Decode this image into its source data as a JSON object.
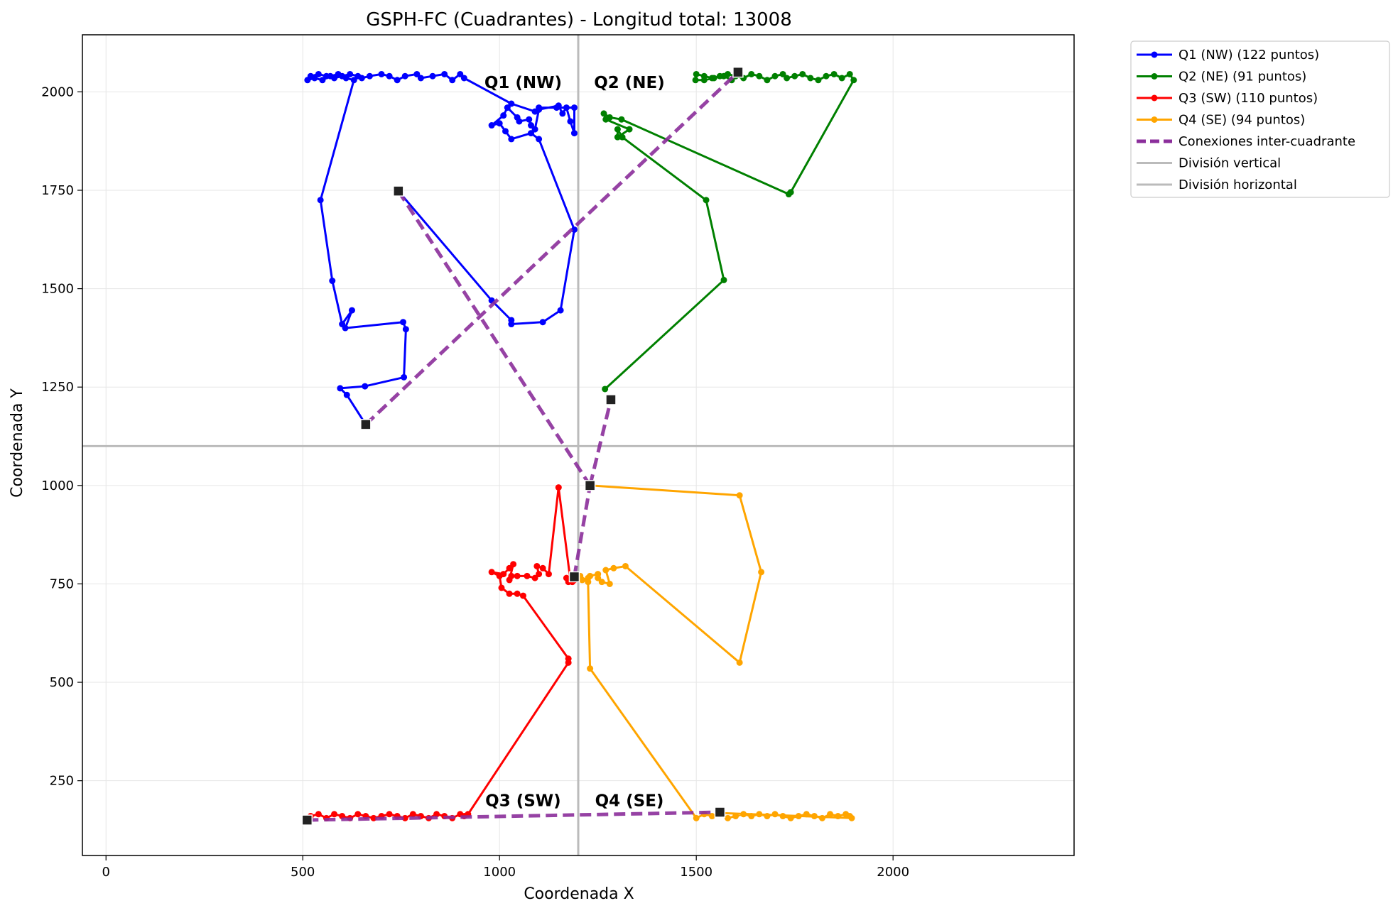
{
  "chart_data": {
    "type": "line",
    "title": "GSPH-FC (Cuadrantes) - Longitud total: 13008",
    "xlabel": "Coordenada X",
    "ylabel": "Coordenada Y",
    "xlim": [
      -60,
      2460
    ],
    "ylim": [
      60,
      2145
    ],
    "xticks": [
      0,
      500,
      1000,
      1500,
      2000
    ],
    "yticks": [
      250,
      500,
      750,
      1000,
      1250,
      1500,
      1750,
      2000
    ],
    "grid": true,
    "legend_position": "outside-top-right",
    "divisions": {
      "vertical_x": 1200,
      "horizontal_y": 1100
    },
    "quadrant_labels": [
      {
        "text": "Q1 (NW)",
        "x": 1060,
        "y": 2010
      },
      {
        "text": "Q2 (NE)",
        "x": 1330,
        "y": 2010
      },
      {
        "text": "Q3 (SW)",
        "x": 1060,
        "y": 185
      },
      {
        "text": "Q4 (SE)",
        "x": 1330,
        "y": 185
      }
    ],
    "legend": [
      {
        "label": "Q1 (NW) (122 puntos)",
        "color": "#0000ff",
        "style": "line-marker"
      },
      {
        "label": "Q2 (NE) (91 puntos)",
        "color": "#008000",
        "style": "line-marker"
      },
      {
        "label": "Q3 (SW) (110 puntos)",
        "color": "#ff0000",
        "style": "line-marker"
      },
      {
        "label": "Q4 (SE) (94 puntos)",
        "color": "#ffa500",
        "style": "line-marker"
      },
      {
        "label": "Conexiones inter-cuadrante",
        "color": "#8b2e9b",
        "style": "dashed"
      },
      {
        "label": "División vertical",
        "color": "#bbbbbb",
        "style": "line"
      },
      {
        "label": "División horizontal",
        "color": "#bbbbbb",
        "style": "line"
      }
    ],
    "series": [
      {
        "name": "Q1 (NW)",
        "color": "#0000ff",
        "points": [
          [
            743,
            1748
          ],
          [
            980,
            1470
          ],
          [
            1030,
            1420
          ],
          [
            1030,
            1410
          ],
          [
            1110,
            1415
          ],
          [
            1155,
            1445
          ],
          [
            1190,
            1650
          ],
          [
            1100,
            1880
          ],
          [
            1080,
            1895
          ],
          [
            1030,
            1880
          ],
          [
            1015,
            1900
          ],
          [
            1000,
            1920
          ],
          [
            980,
            1915
          ],
          [
            1010,
            1940
          ],
          [
            1020,
            1960
          ],
          [
            1045,
            1935
          ],
          [
            1050,
            1925
          ],
          [
            1075,
            1930
          ],
          [
            1080,
            1915
          ],
          [
            1090,
            1905
          ],
          [
            1100,
            1955
          ],
          [
            1150,
            1965
          ],
          [
            1160,
            1945
          ],
          [
            1170,
            1960
          ],
          [
            1180,
            1925
          ],
          [
            1190,
            1895
          ],
          [
            1190,
            1960
          ],
          [
            1145,
            1960
          ],
          [
            1100,
            1960
          ],
          [
            1090,
            1950
          ],
          [
            1030,
            1970
          ],
          [
            910,
            2035
          ],
          [
            900,
            2045
          ],
          [
            880,
            2030
          ],
          [
            860,
            2045
          ],
          [
            830,
            2040
          ],
          [
            800,
            2035
          ],
          [
            790,
            2045
          ],
          [
            760,
            2040
          ],
          [
            740,
            2030
          ],
          [
            720,
            2040
          ],
          [
            700,
            2045
          ],
          [
            670,
            2040
          ],
          [
            650,
            2035
          ],
          [
            640,
            2040
          ],
          [
            620,
            2045
          ],
          [
            600,
            2040
          ],
          [
            580,
            2035
          ],
          [
            560,
            2040
          ],
          [
            540,
            2045
          ],
          [
            520,
            2040
          ],
          [
            512,
            2030
          ],
          [
            530,
            2035
          ],
          [
            550,
            2030
          ],
          [
            570,
            2040
          ],
          [
            590,
            2045
          ],
          [
            610,
            2035
          ],
          [
            630,
            2030
          ],
          [
            545,
            1725
          ],
          [
            575,
            1520
          ],
          [
            600,
            1410
          ],
          [
            625,
            1445
          ],
          [
            608,
            1400
          ],
          [
            755,
            1415
          ],
          [
            762,
            1397
          ],
          [
            757,
            1275
          ],
          [
            658,
            1252
          ],
          [
            595,
            1247
          ],
          [
            612,
            1230
          ],
          [
            660,
            1155
          ]
        ]
      },
      {
        "name": "Q2 (NE)",
        "color": "#008000",
        "points": [
          [
            1268,
            1245
          ],
          [
            1570,
            1522
          ],
          [
            1525,
            1725
          ],
          [
            1312,
            1885
          ],
          [
            1300,
            1905
          ],
          [
            1300,
            1885
          ],
          [
            1330,
            1905
          ],
          [
            1270,
            1930
          ],
          [
            1265,
            1945
          ],
          [
            1280,
            1935
          ],
          [
            1310,
            1930
          ],
          [
            1735,
            1740
          ],
          [
            1740,
            1745
          ],
          [
            1900,
            2030
          ],
          [
            1890,
            2045
          ],
          [
            1870,
            2035
          ],
          [
            1850,
            2045
          ],
          [
            1830,
            2040
          ],
          [
            1810,
            2030
          ],
          [
            1790,
            2035
          ],
          [
            1770,
            2045
          ],
          [
            1750,
            2040
          ],
          [
            1730,
            2035
          ],
          [
            1720,
            2045
          ],
          [
            1700,
            2040
          ],
          [
            1680,
            2030
          ],
          [
            1660,
            2040
          ],
          [
            1640,
            2045
          ],
          [
            1620,
            2035
          ],
          [
            1600,
            2040
          ],
          [
            1580,
            2045
          ],
          [
            1560,
            2040
          ],
          [
            1540,
            2035
          ],
          [
            1520,
            2040
          ],
          [
            1500,
            2045
          ],
          [
            1498,
            2030
          ],
          [
            1520,
            2030
          ],
          [
            1545,
            2035
          ],
          [
            1570,
            2040
          ],
          [
            1590,
            2030
          ],
          [
            1606,
            2050
          ]
        ]
      },
      {
        "name": "Q3 (SW)",
        "color": "#ff0000",
        "points": [
          [
            511,
            150
          ],
          [
            520,
            160
          ],
          [
            540,
            165
          ],
          [
            560,
            155
          ],
          [
            580,
            165
          ],
          [
            600,
            160
          ],
          [
            620,
            155
          ],
          [
            640,
            165
          ],
          [
            660,
            160
          ],
          [
            680,
            155
          ],
          [
            700,
            160
          ],
          [
            720,
            165
          ],
          [
            740,
            160
          ],
          [
            760,
            155
          ],
          [
            780,
            165
          ],
          [
            800,
            160
          ],
          [
            820,
            155
          ],
          [
            840,
            165
          ],
          [
            860,
            160
          ],
          [
            880,
            155
          ],
          [
            900,
            165
          ],
          [
            910,
            160
          ],
          [
            920,
            165
          ],
          [
            1175,
            550
          ],
          [
            1175,
            560
          ],
          [
            1060,
            720
          ],
          [
            1045,
            725
          ],
          [
            1025,
            725
          ],
          [
            1005,
            740
          ],
          [
            1000,
            770
          ],
          [
            980,
            780
          ],
          [
            1010,
            775
          ],
          [
            1025,
            790
          ],
          [
            1035,
            800
          ],
          [
            1025,
            760
          ],
          [
            1030,
            770
          ],
          [
            1045,
            770
          ],
          [
            1070,
            770
          ],
          [
            1090,
            765
          ],
          [
            1100,
            775
          ],
          [
            1095,
            795
          ],
          [
            1110,
            790
          ],
          [
            1125,
            775
          ],
          [
            1150,
            995
          ],
          [
            1180,
            760
          ],
          [
            1175,
            755
          ],
          [
            1170,
            765
          ],
          [
            1185,
            755
          ],
          [
            1190,
            760
          ],
          [
            1200,
            770
          ]
        ]
      },
      {
        "name": "Q4 (SE)",
        "color": "#ffa500",
        "points": [
          [
            1230,
            1000
          ],
          [
            1610,
            975
          ],
          [
            1665,
            780
          ],
          [
            1610,
            550
          ],
          [
            1320,
            795
          ],
          [
            1290,
            790
          ],
          [
            1270,
            785
          ],
          [
            1280,
            750
          ],
          [
            1260,
            755
          ],
          [
            1250,
            765
          ],
          [
            1250,
            775
          ],
          [
            1230,
            770
          ],
          [
            1225,
            765
          ],
          [
            1210,
            760
          ],
          [
            1205,
            770
          ],
          [
            1225,
            755
          ],
          [
            1230,
            535
          ],
          [
            1500,
            155
          ],
          [
            1520,
            165
          ],
          [
            1540,
            160
          ],
          [
            1560,
            165
          ],
          [
            1580,
            155
          ],
          [
            1600,
            160
          ],
          [
            1620,
            165
          ],
          [
            1640,
            160
          ],
          [
            1660,
            165
          ],
          [
            1680,
            160
          ],
          [
            1700,
            165
          ],
          [
            1720,
            160
          ],
          [
            1740,
            155
          ],
          [
            1760,
            160
          ],
          [
            1780,
            165
          ],
          [
            1800,
            160
          ],
          [
            1820,
            155
          ],
          [
            1840,
            165
          ],
          [
            1860,
            160
          ],
          [
            1880,
            165
          ],
          [
            1890,
            160
          ],
          [
            1895,
            155
          ],
          [
            1560,
            168
          ]
        ]
      }
    ],
    "connections": [
      [
        [
          660,
          1155
        ],
        [
          1606,
          2050
        ]
      ],
      [
        [
          743,
          1748
        ],
        [
          1230,
          1000
        ]
      ],
      [
        [
          1230,
          1000
        ],
        [
          1283,
          1218
        ]
      ],
      [
        [
          1190,
          768
        ],
        [
          1230,
          1000
        ]
      ],
      [
        [
          511,
          150
        ],
        [
          1560,
          170
        ]
      ]
    ],
    "markers": [
      [
        660,
        1155
      ],
      [
        743,
        1748
      ],
      [
        1606,
        2050
      ],
      [
        1283,
        1218
      ],
      [
        1230,
        1000
      ],
      [
        1190,
        768
      ],
      [
        511,
        150
      ],
      [
        1560,
        170
      ]
    ]
  }
}
